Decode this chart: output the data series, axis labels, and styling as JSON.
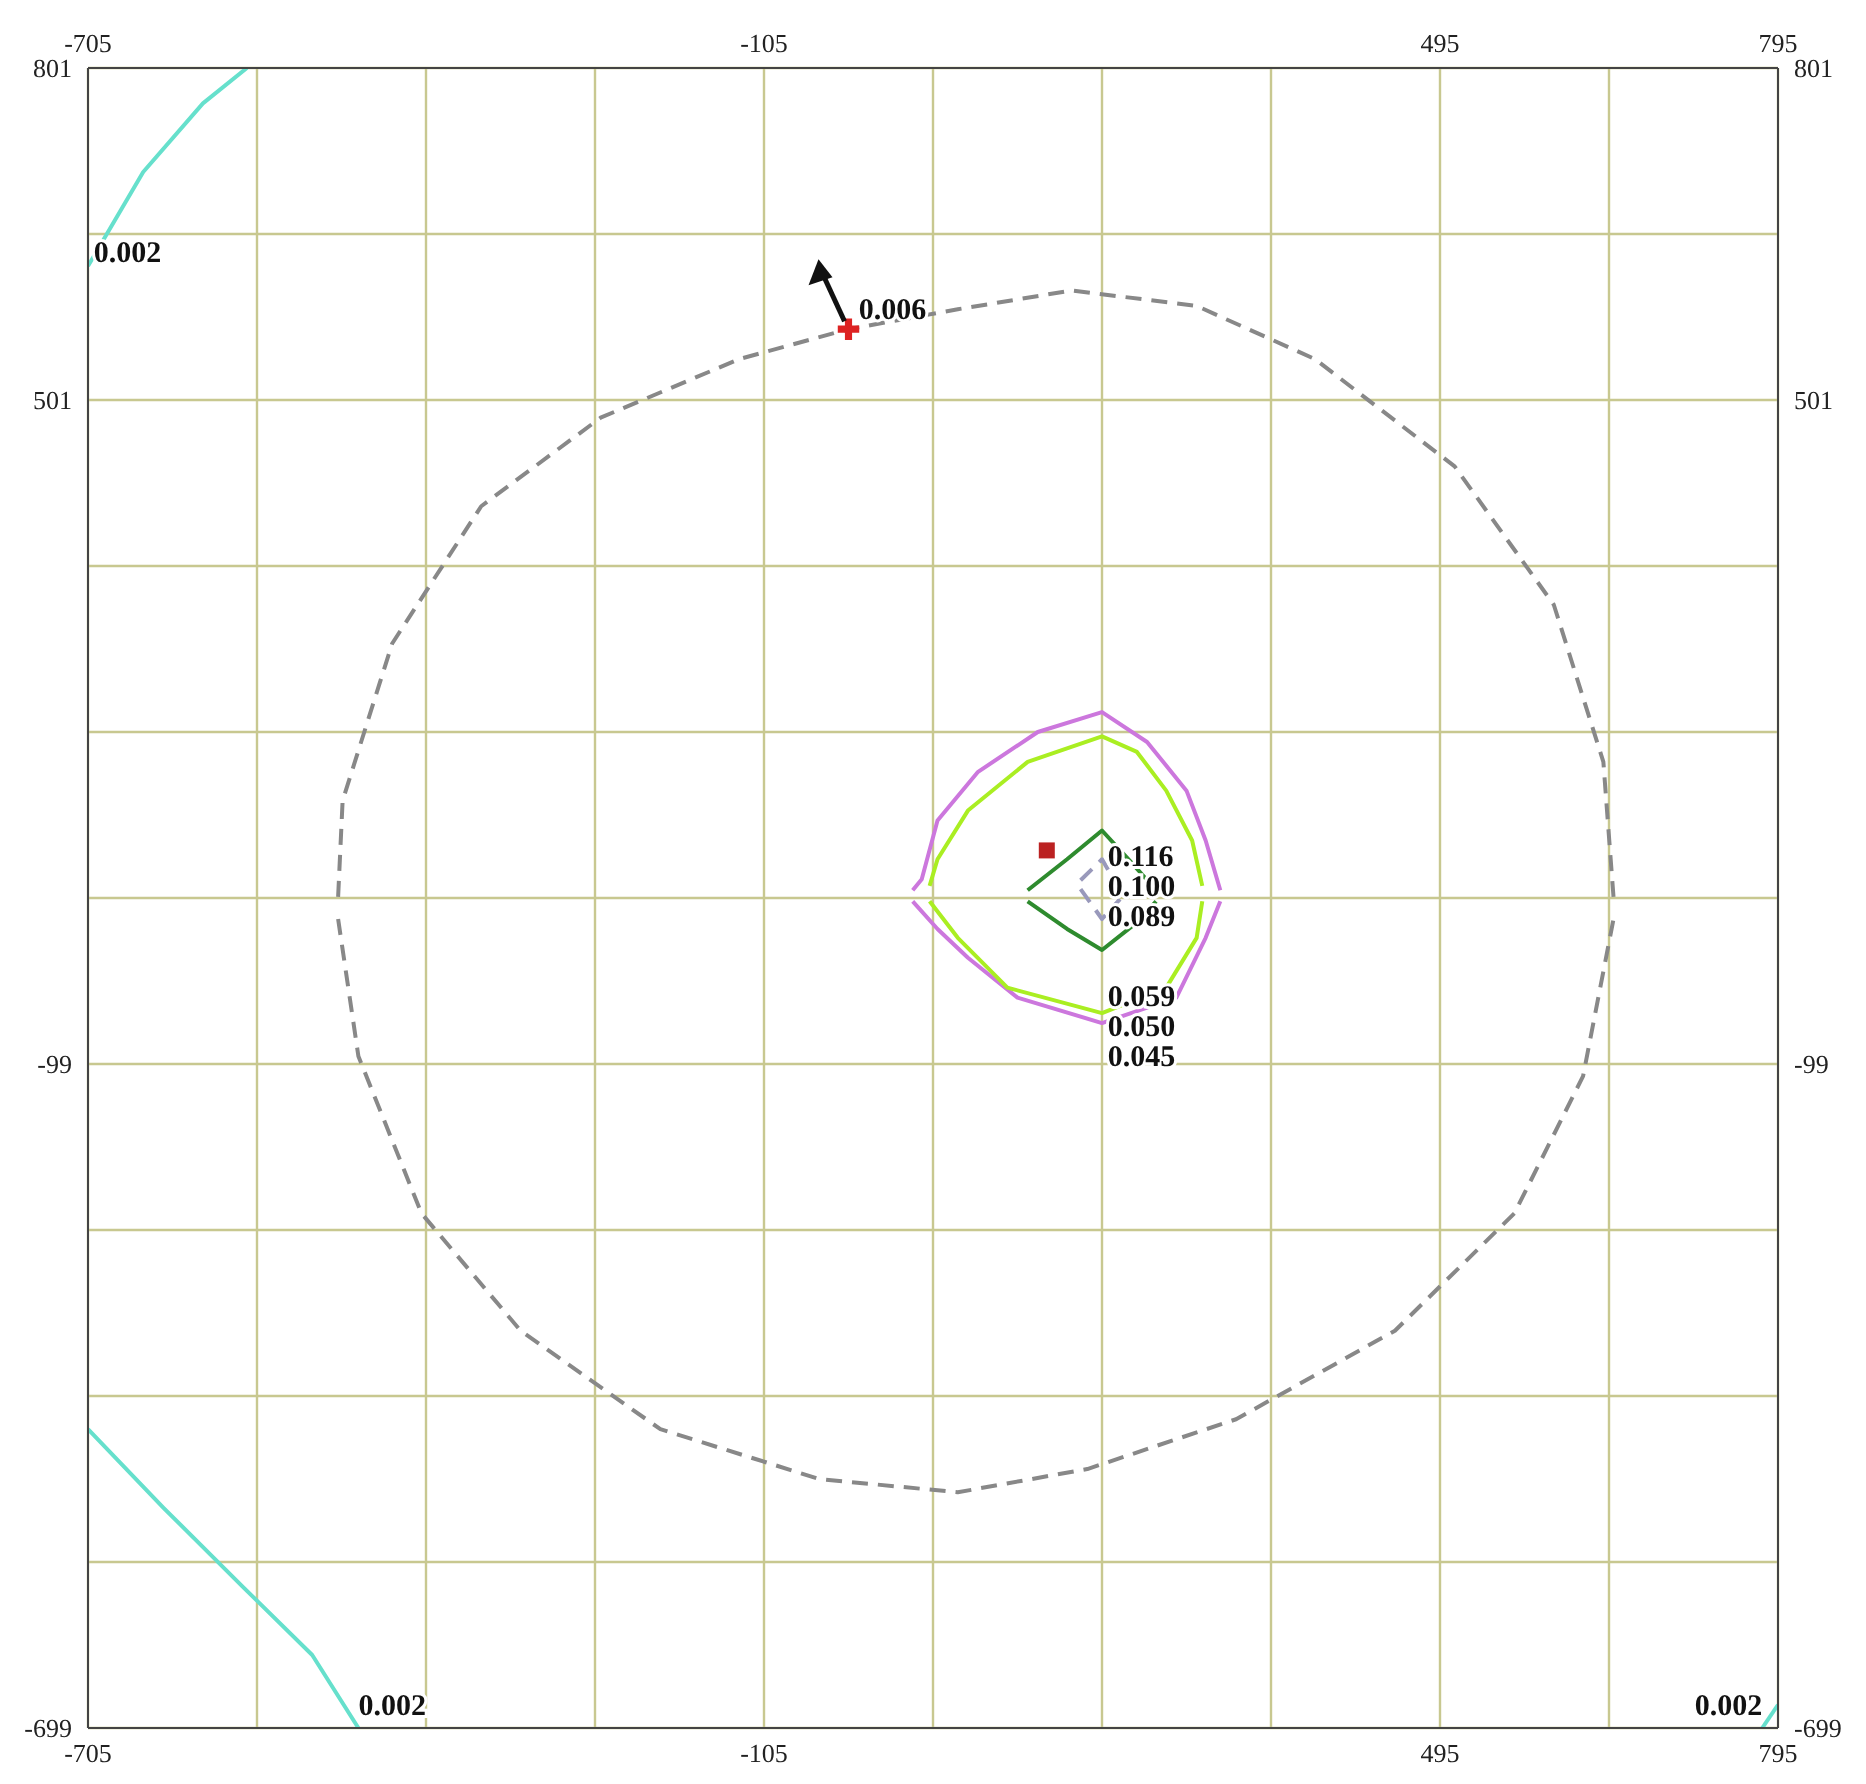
{
  "chart_data": {
    "type": "line",
    "grid": true,
    "marker": "none",
    "xlim": [
      -705,
      795
    ],
    "x2lim": [
      -705,
      795
    ],
    "ylim": [
      -699,
      801
    ],
    "y2lim": [
      -699,
      801
    ],
    "xticks": [
      -705,
      {
        "value": -555,
        "label": null
      },
      {
        "value": -405,
        "label": null
      },
      {
        "value": -255,
        "label": null
      },
      -105,
      {
        "value": 45,
        "label": null
      },
      {
        "value": 195,
        "label": null
      },
      {
        "value": 345,
        "label": null
      },
      495,
      {
        "value": 645,
        "label": null
      },
      795
    ],
    "x2ticks": [
      -705,
      -105,
      495,
      795
    ],
    "yticks": [
      -699,
      {
        "value": -549,
        "label": null
      },
      {
        "value": -399,
        "label": null
      },
      {
        "value": -249,
        "label": null
      },
      -99,
      {
        "value": 51,
        "label": null
      },
      {
        "value": 201,
        "label": null
      },
      {
        "value": 351,
        "label": null
      },
      501,
      {
        "value": 651,
        "label": null
      },
      801
    ],
    "y2ticks": [
      -699,
      -99,
      501,
      801
    ],
    "series": [
      {
        "color": "#66e0cc",
        "x": [
          -705,
          -656,
          -603,
          -564
        ],
        "values": [
          622,
          707,
          769,
          801
        ]
      },
      {
        "color": "#66e0cc",
        "x": [
          -705,
          -638,
          -568,
          -506,
          -465
        ],
        "values": [
          -429,
          -500,
          -571,
          -633,
          -699
        ]
      },
      {
        "color": "#66e0cc",
        "x": [
          781,
          795
        ],
        "values": [
          -699,
          -678
        ]
      },
      {
        "color": "#888888",
        "line_style": "dashed",
        "x": [
          -483,
          -479,
          -435,
          -356,
          -250,
          -127,
          -30,
          67,
          168,
          279,
          384,
          508,
          596,
          640,
          649
        ],
        "values": [
          52,
          139,
          281,
          405,
          485,
          538,
          565,
          583,
          600,
          586,
          538,
          441,
          316,
          174,
          52
        ]
      },
      {
        "color": "#888888",
        "line_style": "dashed",
        "x": [
          -483,
          -465,
          -409,
          -321,
          -197,
          -56,
          67,
          182,
          314,
          455,
          561,
          622,
          649
        ],
        "values": [
          32,
          -92,
          -234,
          -340,
          -429,
          -474,
          -486,
          -465,
          -420,
          -340,
          -234,
          -110,
          32
        ]
      },
      {
        "color": "#cc77dd",
        "x": [
          27,
          35,
          49,
          85,
          138,
          195,
          235,
          270,
          287,
          300
        ],
        "values": [
          58,
          68,
          121,
          165,
          201,
          219,
          192,
          148,
          103,
          58
        ]
      },
      {
        "color": "#cc77dd",
        "x": [
          27,
          49,
          76,
          120,
          195,
          261,
          287,
          300
        ],
        "values": [
          48,
          23,
          -3,
          -39,
          -62,
          -39,
          15,
          48
        ]
      },
      {
        "color": "#aaee22",
        "x": [
          42,
          49,
          76,
          129,
          195,
          226,
          252,
          275,
          284
        ],
        "values": [
          62,
          86,
          130,
          174,
          197,
          183,
          148,
          103,
          62
        ]
      },
      {
        "color": "#aaee22",
        "x": [
          42,
          67,
          111,
          195,
          252,
          279,
          284
        ],
        "values": [
          48,
          15,
          -30,
          -53,
          -30,
          15,
          48
        ]
      },
      {
        "color": "#2e8b2e",
        "x": [
          129,
          164,
          195,
          222,
          243
        ],
        "values": [
          58,
          86,
          112,
          82,
          58
        ]
      },
      {
        "color": "#2e8b2e",
        "x": [
          129,
          164,
          195,
          226,
          243
        ],
        "values": [
          48,
          23,
          4,
          29,
          48
        ]
      },
      {
        "color": "#9999bb",
        "line_style": "dashed",
        "x": [
          176,
          195,
          211
        ],
        "values": [
          67,
          86,
          58
        ]
      },
      {
        "color": "#9999bb",
        "line_style": "dashed",
        "x": [
          176,
          195,
          211
        ],
        "values": [
          59,
          32,
          50
        ]
      },
      {
        "type": "scatter",
        "marker": "cross",
        "color": "#dd2222",
        "x": [
          -30
        ],
        "values": [
          565
        ]
      },
      {
        "type": "scatter",
        "marker": "square",
        "color": "#bb2222",
        "x": [
          146
        ],
        "values": [
          94
        ]
      }
    ],
    "annotations": [
      {
        "text": "0.002",
        "x": -700,
        "y": 626
      },
      {
        "text": "0.002",
        "x": -465,
        "y": -687
      },
      {
        "text": "0.002",
        "x": 781,
        "y": -687
      },
      {
        "text": "0.006",
        "x": -21,
        "y": 574
      },
      {
        "text": "0.116",
        "x": 200,
        "y": 80
      },
      "0.100",
      {
        "text": "0.089",
        "x": 200,
        "y": 26
      },
      {
        "text": "0.059",
        "x": 200,
        "y": -47
      },
      "0.050",
      "0.045"
    ]
  }
}
